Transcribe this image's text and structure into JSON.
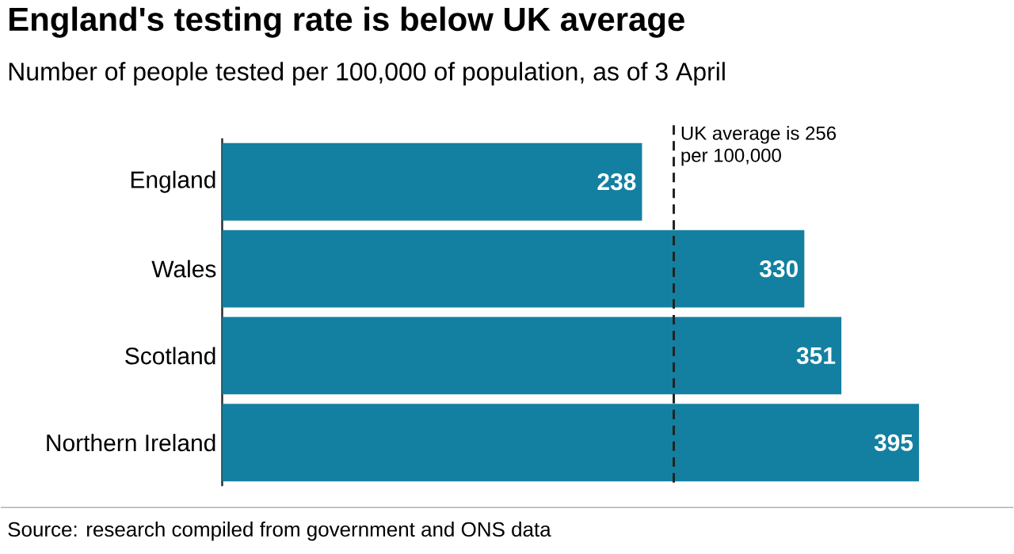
{
  "chart_data": {
    "type": "bar",
    "orientation": "horizontal",
    "title": "England's testing rate is below UK average",
    "subtitle": "Number of people tested per 100,000 of population, as of 3 April",
    "categories": [
      "England",
      "Wales",
      "Scotland",
      "Northern Ireland"
    ],
    "values": [
      238,
      330,
      351,
      395
    ],
    "color": "#1380a1",
    "data_labels": true,
    "ref_lines": [
      {
        "axis": "x",
        "value": 256,
        "label": "UK average is 256 per 100,000",
        "line_style": "dashed",
        "color": "#222222"
      }
    ],
    "annotations": [
      "Source: research compiled from government and ONS data"
    ]
  }
}
